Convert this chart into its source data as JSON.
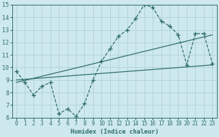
{
  "title": "",
  "xlabel": "Humidex (Indice chaleur)",
  "xlim": [
    -0.5,
    23.5
  ],
  "ylim": [
    6,
    15
  ],
  "yticks": [
    6,
    7,
    8,
    9,
    10,
    11,
    12,
    13,
    14,
    15
  ],
  "xticks": [
    0,
    1,
    2,
    3,
    4,
    5,
    6,
    7,
    8,
    9,
    10,
    11,
    12,
    13,
    14,
    15,
    16,
    17,
    18,
    19,
    20,
    21,
    22,
    23
  ],
  "bg_color": "#cde8ee",
  "line_color": "#2e6e63",
  "grid_color": "#aacdd4",
  "curve1_x": [
    0,
    1,
    2,
    3,
    4,
    5,
    6,
    7,
    8,
    9,
    10,
    11,
    12,
    13,
    14,
    15,
    16,
    17,
    18,
    19,
    20,
    21,
    22,
    23
  ],
  "curve1_y": [
    9.7,
    8.8,
    7.8,
    8.5,
    8.8,
    6.3,
    6.7,
    6.1,
    7.1,
    9.0,
    10.5,
    11.5,
    12.5,
    13.0,
    13.9,
    15.0,
    14.8,
    13.7,
    13.3,
    12.6,
    10.2,
    12.7,
    12.7,
    10.3
  ],
  "curve2_x": [
    0,
    23
  ],
  "curve2_y": [
    9.0,
    10.2
  ],
  "curve3_x": [
    0,
    23
  ],
  "curve3_y": [
    8.8,
    12.6
  ]
}
